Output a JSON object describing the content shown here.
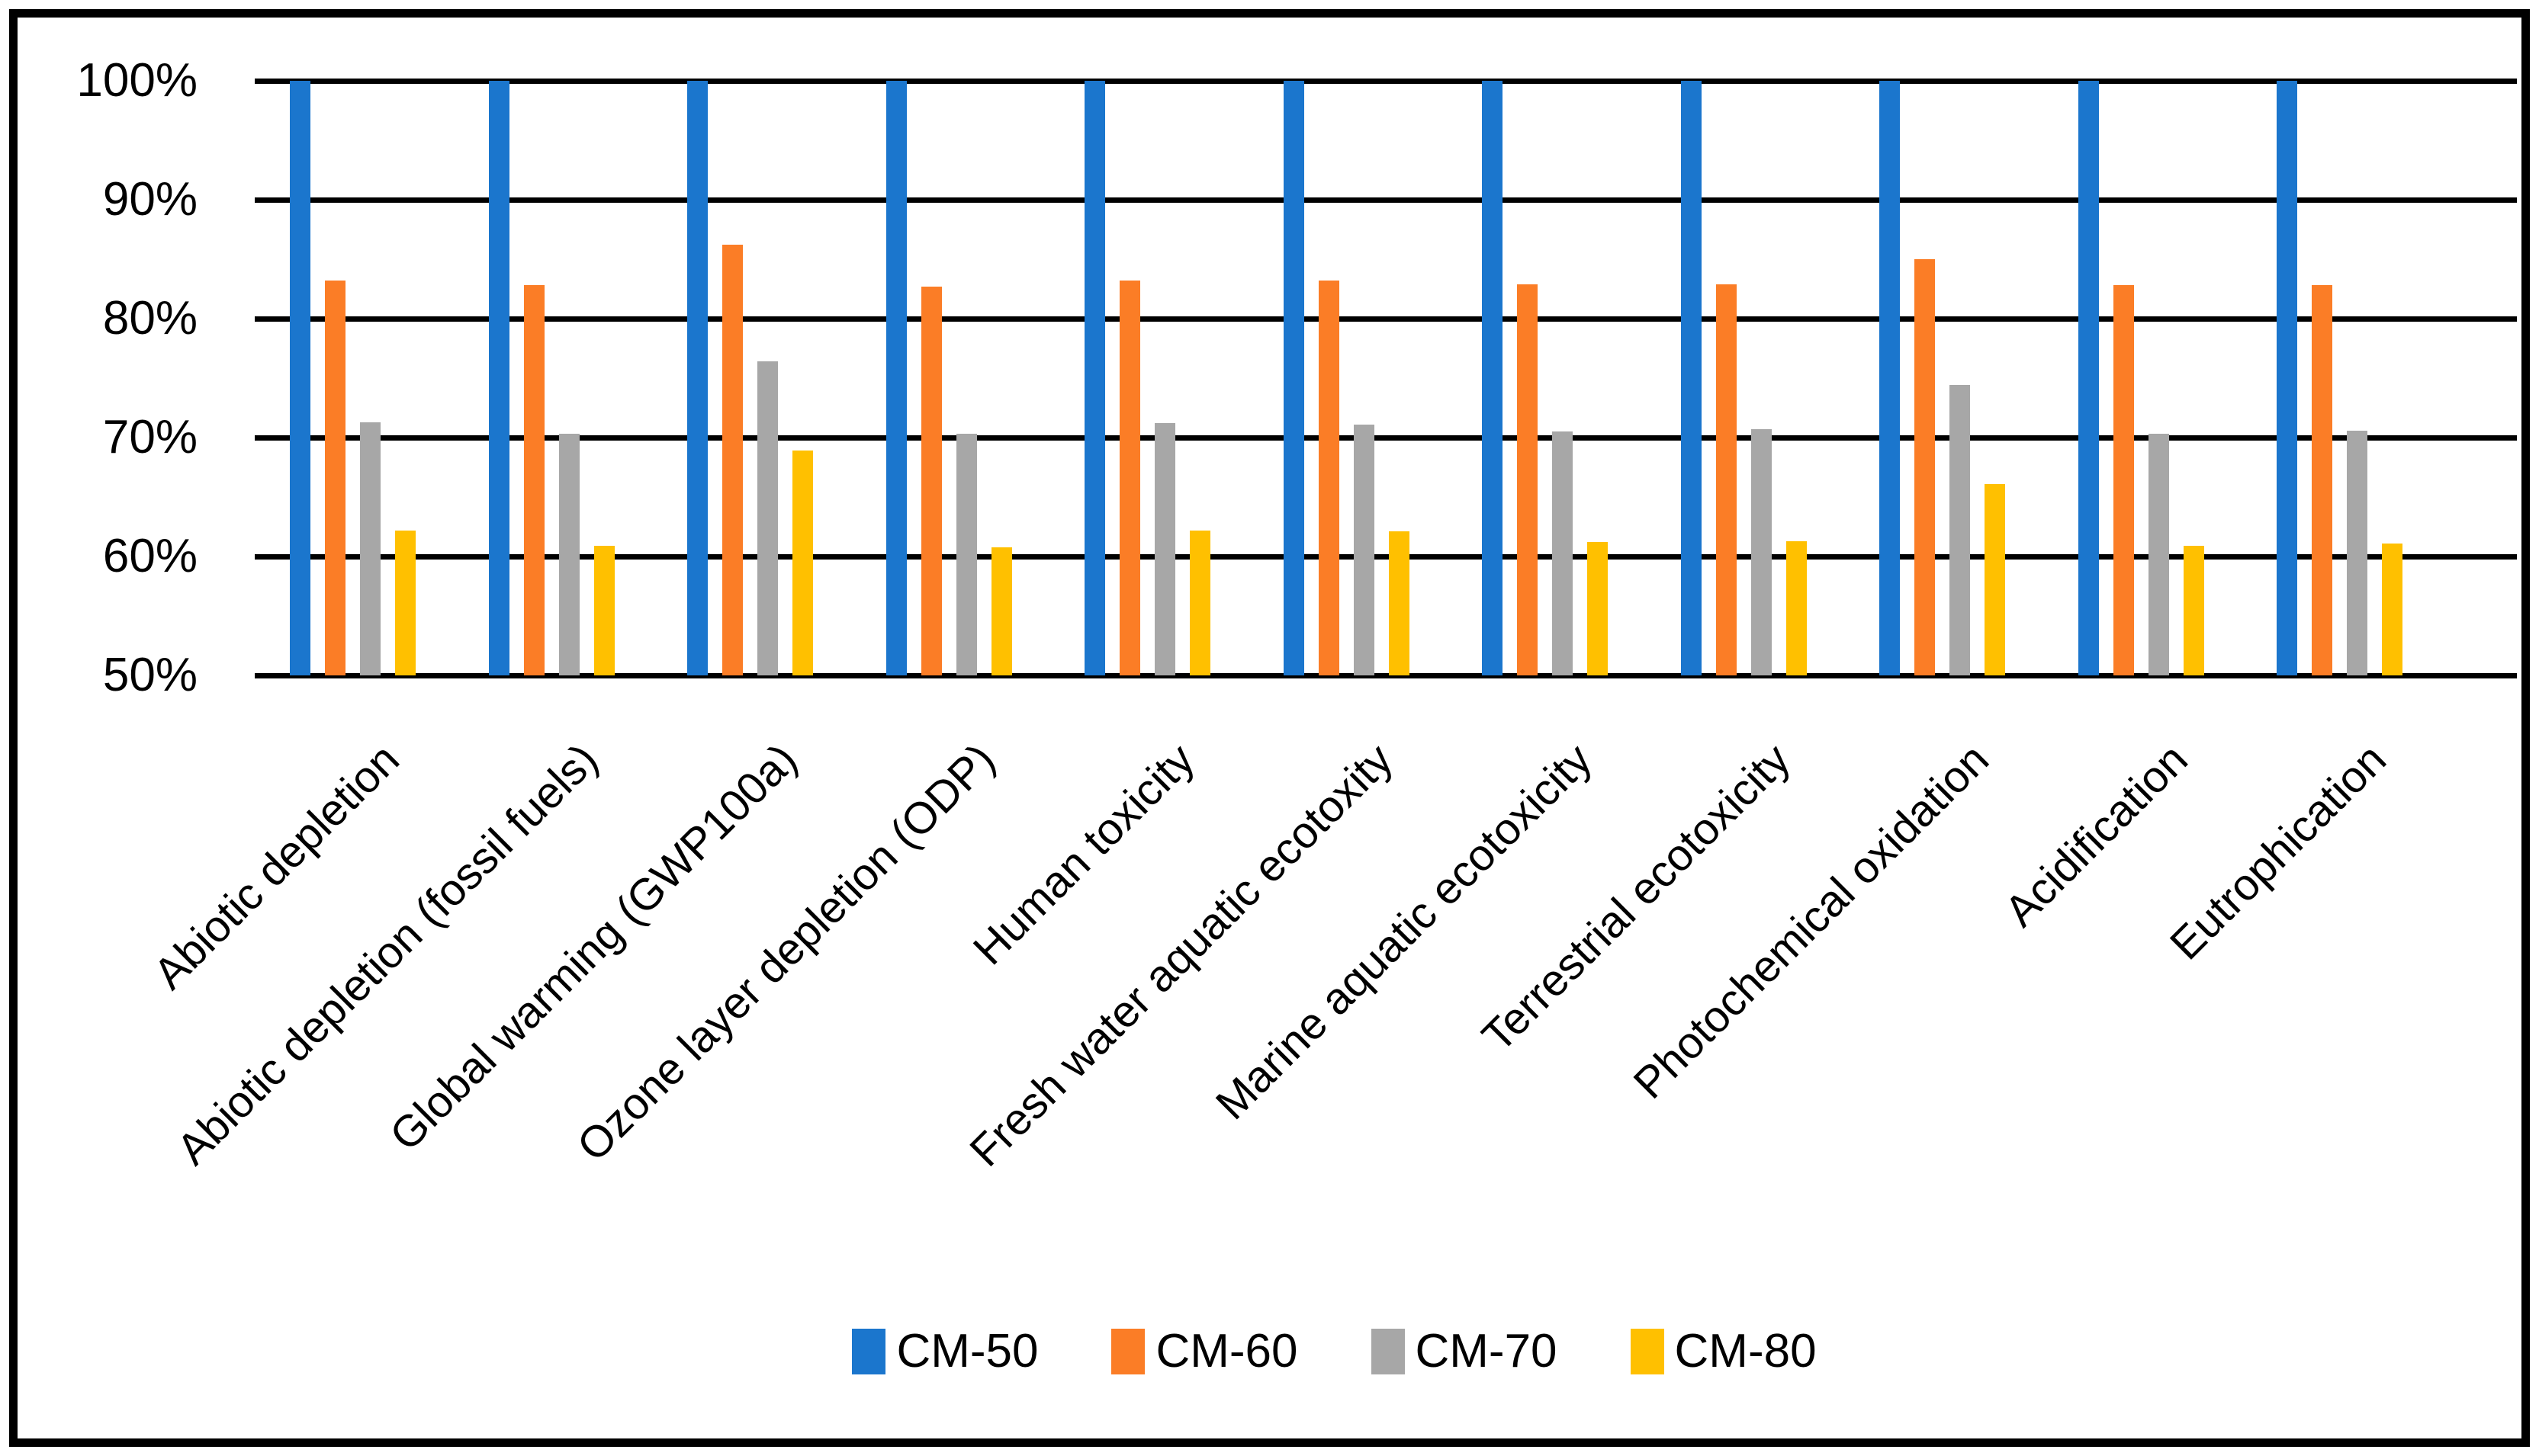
{
  "chart_data": {
    "type": "bar",
    "title": "",
    "xlabel": "",
    "ylabel": "",
    "ylim": [
      50,
      100
    ],
    "grid": "horizontal-black",
    "legend_position": "bottom-center",
    "background_color": "#FFFFFF",
    "frame_color": "#000000",
    "gridline_color": "#000000",
    "yticks": {
      "values": [
        100,
        90,
        80,
        70,
        60,
        50
      ],
      "labels": [
        "100%",
        "90%",
        "80%",
        "70%",
        "60%",
        "50%"
      ]
    },
    "categories": [
      "Abiotic depletion",
      "Abiotic depletion (fossil fuels)",
      "Global warming (GWP100a)",
      "Ozone layer depletion (ODP)",
      "Human toxicity",
      "Fresh water aquatic ecotoxity",
      "Marine aquatic ecotoxicity",
      "Terrestrial ecotoxicity",
      "Photochemical oxidation",
      "Acidification",
      "Eutrophication"
    ],
    "series": [
      {
        "name": "CM-50",
        "color": "#1B76CD",
        "values": [
          100,
          100,
          100,
          100,
          100,
          100,
          100,
          100,
          100,
          100,
          100
        ]
      },
      {
        "name": "CM-60",
        "color": "#FB7D26",
        "values": [
          83.2,
          82.8,
          86.2,
          82.7,
          83.2,
          83.2,
          82.9,
          82.9,
          85.0,
          82.8,
          82.8
        ]
      },
      {
        "name": "CM-70",
        "color": "#A7A7A7",
        "values": [
          71.3,
          70.3,
          76.4,
          70.3,
          71.2,
          71.1,
          70.5,
          70.7,
          74.4,
          70.3,
          70.6
        ]
      },
      {
        "name": "CM-80",
        "color": "#FFC000",
        "values": [
          62.2,
          60.9,
          68.9,
          60.8,
          62.2,
          62.1,
          61.2,
          61.3,
          66.1,
          60.9,
          61.1
        ]
      }
    ]
  }
}
